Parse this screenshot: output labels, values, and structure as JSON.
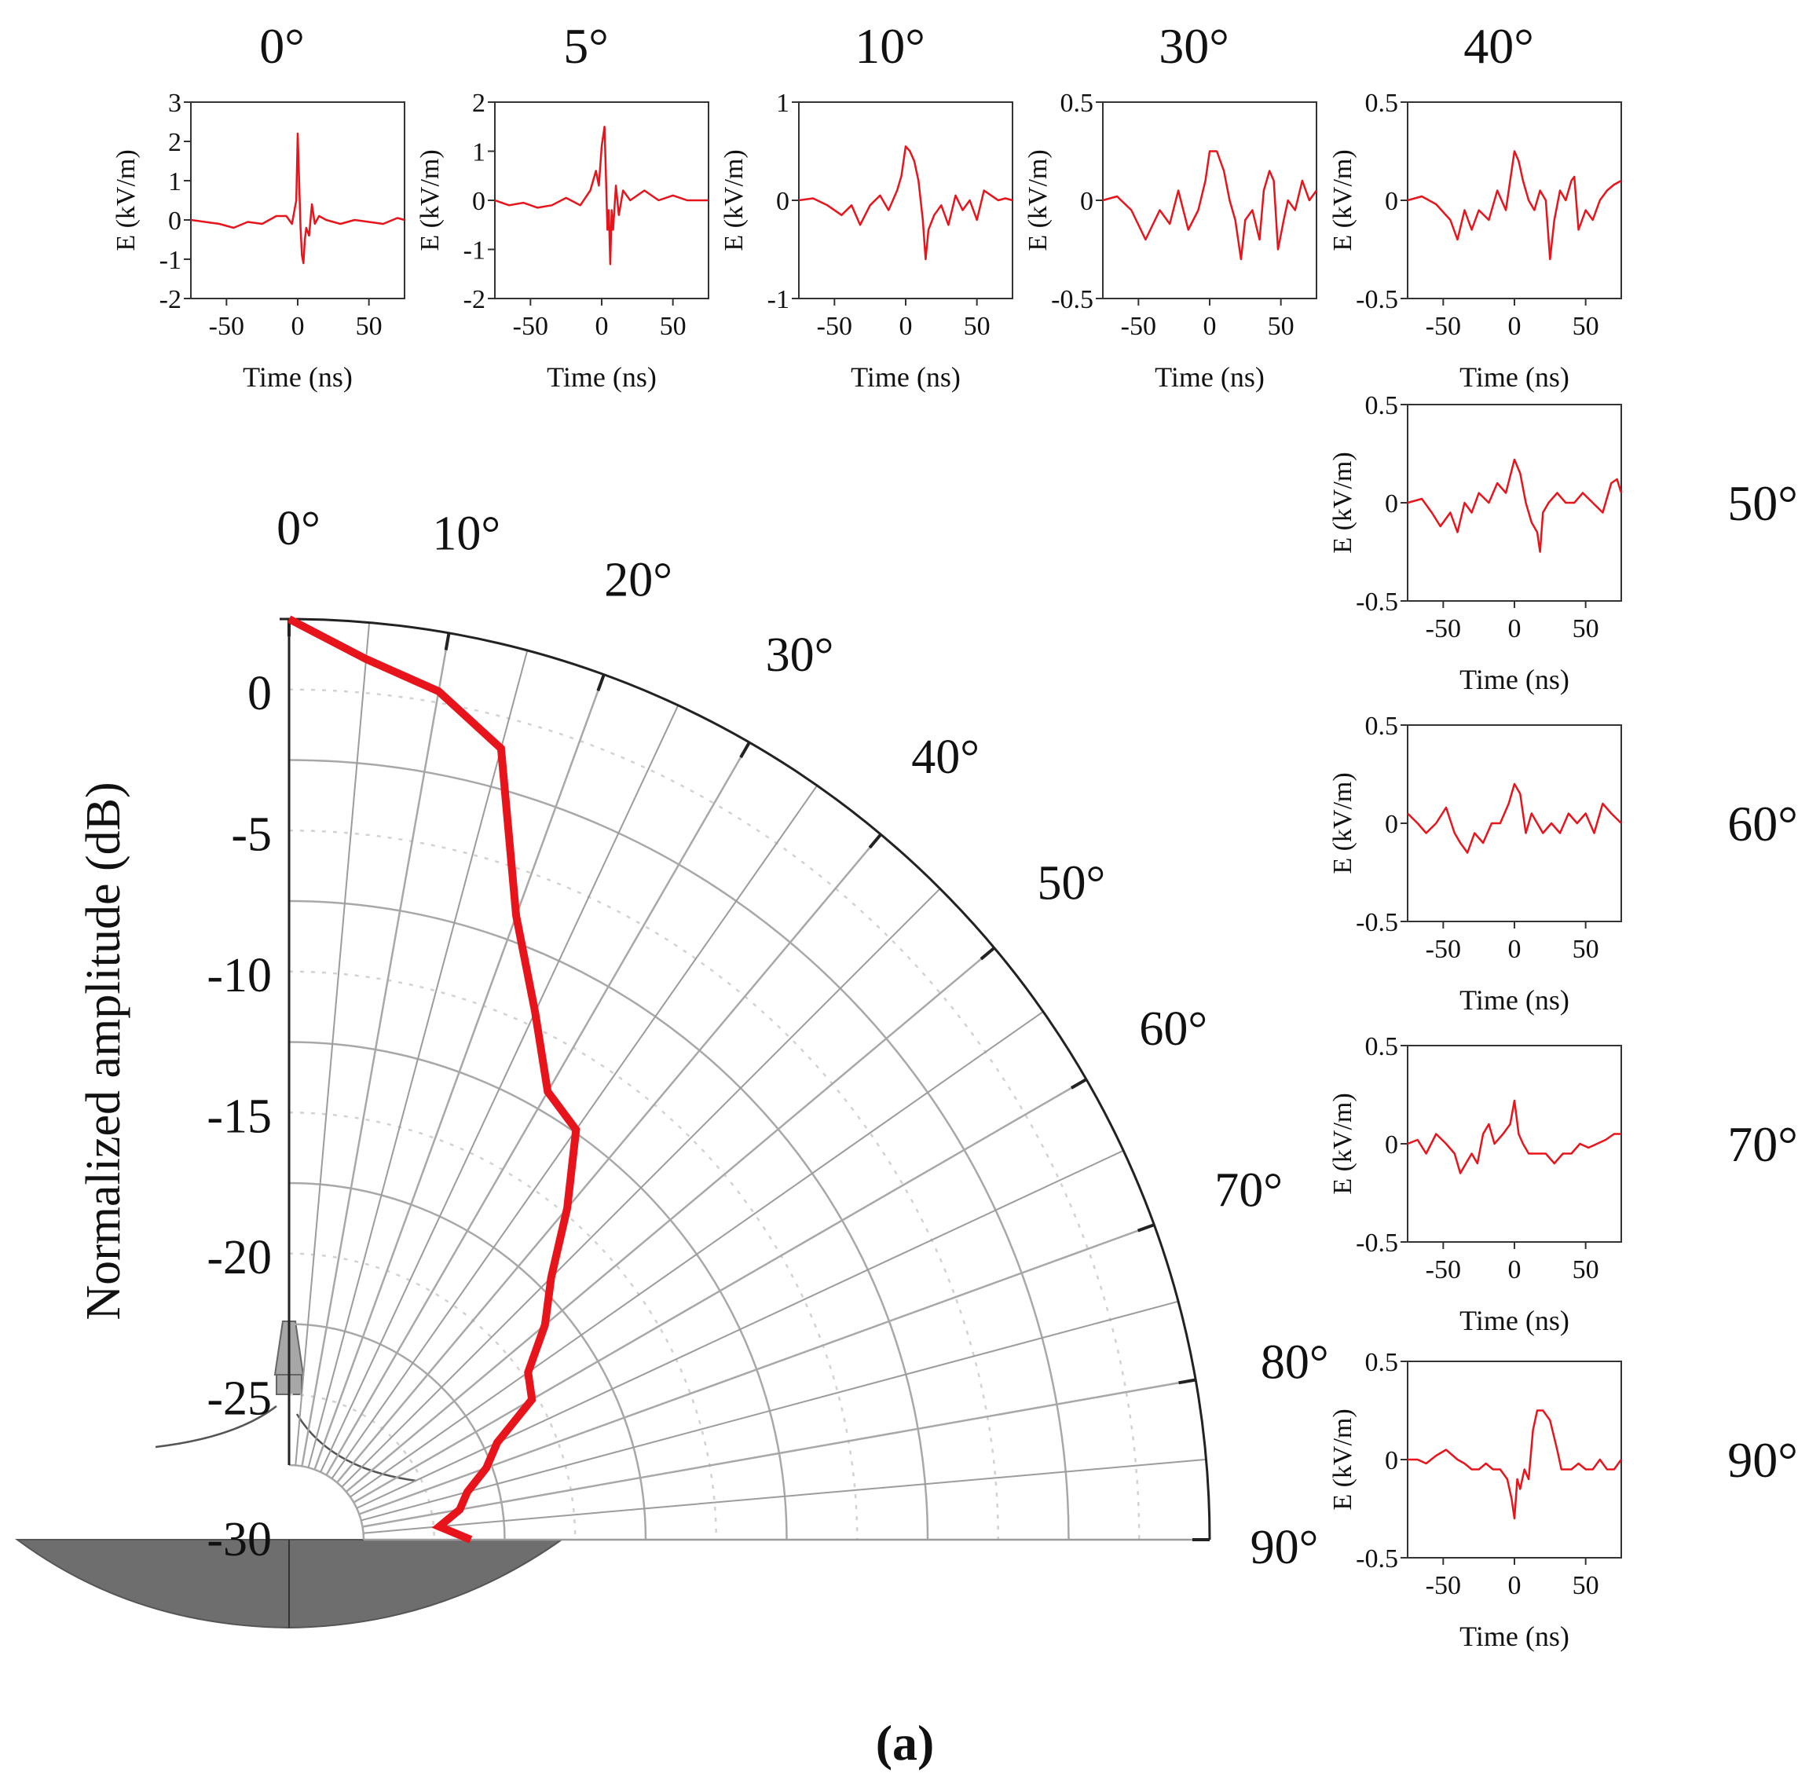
{
  "caption": "(a)",
  "chart_data": [
    {
      "type": "polar-line",
      "ylabel": "Normalized amplitude (dB)",
      "radial_range": [
        -30,
        0
      ],
      "radial_ticks": [
        0,
        -5,
        -10,
        -15,
        -20,
        -25,
        -30
      ],
      "radial_tick_labels": [
        "0",
        "-5",
        "-10",
        "-15",
        "-20",
        "-25",
        "-30"
      ],
      "angle_range": [
        0,
        90
      ],
      "angle_ticks": [
        0,
        10,
        20,
        30,
        40,
        50,
        60,
        70,
        80,
        90
      ],
      "angle_tick_labels": [
        "0°",
        "10°",
        "20°",
        "30°",
        "40°",
        "50°",
        "60°",
        "70°",
        "80°",
        "90°"
      ],
      "grid": true,
      "series": [
        {
          "angles": [
            0,
            5,
            10,
            15,
            20,
            25,
            30,
            35,
            40,
            45,
            50,
            55,
            60,
            65,
            70,
            75,
            80,
            85,
            90
          ],
          "values": [
            0,
            -1.3,
            -2.1,
            -3.6,
            -9.1,
            -12.0,
            -14.3,
            -14.9,
            -17.3,
            -19.5,
            -20.8,
            -22.3,
            -22.7,
            -24.5,
            -25.2,
            -26.1,
            -26.5,
            -27.3,
            -26.2
          ]
        }
      ],
      "colors": {
        "series": "#e8141b",
        "grid": "#a8a8a8",
        "frame": "#222222"
      }
    },
    {
      "type": "line",
      "label": "0°",
      "xlabel": "Time (ns)",
      "ylabel": "E (kV/m)",
      "xlim": [
        -75,
        75
      ],
      "ylim": [
        -2,
        3
      ],
      "xticks": [
        -50,
        0,
        50
      ],
      "xtick_labels": [
        "-50",
        "0",
        "50"
      ],
      "yticks": [
        3,
        2,
        1,
        0,
        -1,
        -2
      ],
      "ytick_labels": [
        "3",
        "2",
        "1",
        "0",
        "-1",
        "-2"
      ],
      "x": [
        -75,
        -65,
        -55,
        -45,
        -35,
        -25,
        -15,
        -8,
        -4,
        -1,
        0,
        1,
        2,
        3,
        4,
        5,
        6,
        8,
        10,
        12,
        15,
        20,
        30,
        40,
        50,
        60,
        70,
        75
      ],
      "y": [
        0.0,
        -0.05,
        -0.1,
        -0.2,
        -0.05,
        -0.1,
        0.1,
        0.1,
        -0.1,
        0.5,
        2.2,
        1.0,
        -0.2,
        -0.9,
        -1.1,
        -0.5,
        -0.2,
        -0.4,
        0.4,
        -0.1,
        0.1,
        0.0,
        -0.1,
        0.0,
        -0.05,
        -0.1,
        0.05,
        0.0
      ]
    },
    {
      "type": "line",
      "label": "5°",
      "xlabel": "Time (ns)",
      "ylabel": "E (kV/m)",
      "xlim": [
        -75,
        75
      ],
      "ylim": [
        -2,
        2
      ],
      "xticks": [
        -50,
        0,
        50
      ],
      "xtick_labels": [
        "-50",
        "0",
        "50"
      ],
      "yticks": [
        2,
        1,
        0,
        -1,
        -2
      ],
      "ytick_labels": [
        "2",
        "1",
        "0",
        "-1",
        "-2"
      ],
      "x": [
        -75,
        -65,
        -55,
        -45,
        -35,
        -25,
        -15,
        -8,
        -4,
        -2,
        0,
        2,
        3,
        4,
        5,
        6,
        7,
        8,
        10,
        12,
        15,
        20,
        30,
        40,
        50,
        60,
        70,
        75
      ],
      "y": [
        0.0,
        -0.1,
        -0.05,
        -0.15,
        -0.1,
        0.05,
        -0.1,
        0.2,
        0.6,
        0.3,
        1.1,
        1.5,
        0.5,
        -0.6,
        -0.2,
        -1.3,
        -0.2,
        -0.6,
        0.3,
        -0.3,
        0.2,
        0.0,
        0.2,
        0.0,
        0.1,
        0.0,
        0.0,
        0.0
      ]
    },
    {
      "type": "line",
      "label": "10°",
      "xlabel": "Time (ns)",
      "ylabel": "E (kV/m)",
      "xlim": [
        -75,
        75
      ],
      "ylim": [
        -1,
        1
      ],
      "xticks": [
        -50,
        0,
        50
      ],
      "xtick_labels": [
        "-50",
        "0",
        "50"
      ],
      "yticks": [
        1,
        0,
        -1
      ],
      "ytick_labels": [
        "1",
        "0",
        "-1"
      ],
      "x": [
        -75,
        -65,
        -55,
        -45,
        -38,
        -32,
        -25,
        -18,
        -12,
        -6,
        -3,
        0,
        3,
        6,
        9,
        12,
        14,
        16,
        20,
        25,
        30,
        35,
        40,
        45,
        50,
        55,
        60,
        65,
        70,
        75
      ],
      "y": [
        0.0,
        0.02,
        -0.05,
        -0.15,
        -0.05,
        -0.25,
        -0.05,
        0.05,
        -0.1,
        0.1,
        0.25,
        0.55,
        0.5,
        0.4,
        0.2,
        -0.2,
        -0.6,
        -0.3,
        -0.15,
        -0.05,
        -0.25,
        0.05,
        -0.1,
        0.0,
        -0.2,
        0.1,
        0.05,
        0.0,
        0.02,
        0.0
      ]
    },
    {
      "type": "line",
      "label": "30°",
      "xlabel": "Time (ns)",
      "ylabel": "E (kV/m)",
      "xlim": [
        -75,
        75
      ],
      "ylim": [
        -0.5,
        0.5
      ],
      "xticks": [
        -50,
        0,
        50
      ],
      "xtick_labels": [
        "-50",
        "0",
        "50"
      ],
      "yticks": [
        0.5,
        0,
        -0.5
      ],
      "ytick_labels": [
        "0.5",
        "0",
        "-0.5"
      ],
      "x": [
        -75,
        -65,
        -55,
        -45,
        -35,
        -28,
        -22,
        -15,
        -8,
        -3,
        0,
        5,
        10,
        14,
        18,
        22,
        25,
        30,
        35,
        38,
        42,
        45,
        48,
        52,
        55,
        60,
        65,
        70,
        75
      ],
      "y": [
        0.0,
        0.02,
        -0.05,
        -0.2,
        -0.05,
        -0.12,
        0.05,
        -0.15,
        -0.05,
        0.1,
        0.25,
        0.25,
        0.15,
        0.0,
        -0.1,
        -0.3,
        -0.1,
        -0.05,
        -0.2,
        0.05,
        0.15,
        0.1,
        -0.25,
        -0.1,
        0.0,
        -0.05,
        0.1,
        0.0,
        0.05
      ]
    },
    {
      "type": "line",
      "label": "40°",
      "xlabel": "Time (ns)",
      "ylabel": "E (kV/m)",
      "xlim": [
        -75,
        75
      ],
      "ylim": [
        -0.5,
        0.5
      ],
      "xticks": [
        -50,
        0,
        50
      ],
      "xtick_labels": [
        "-50",
        "0",
        "50"
      ],
      "yticks": [
        0.5,
        0,
        -0.5
      ],
      "ytick_labels": [
        "0.5",
        "0",
        "-0.5"
      ],
      "x": [
        -75,
        -65,
        -55,
        -45,
        -40,
        -35,
        -30,
        -25,
        -18,
        -12,
        -6,
        0,
        3,
        6,
        10,
        14,
        18,
        22,
        25,
        28,
        32,
        36,
        40,
        42,
        45,
        50,
        55,
        60,
        65,
        70,
        75
      ],
      "y": [
        0.0,
        0.02,
        -0.02,
        -0.1,
        -0.2,
        -0.05,
        -0.15,
        -0.05,
        -0.1,
        0.05,
        -0.05,
        0.25,
        0.2,
        0.1,
        0.0,
        -0.05,
        0.05,
        0.0,
        -0.3,
        -0.1,
        0.05,
        0.0,
        0.1,
        0.12,
        -0.15,
        -0.05,
        -0.1,
        0.0,
        0.05,
        0.08,
        0.1
      ]
    },
    {
      "type": "line",
      "label": "50°",
      "xlabel": "Time (ns)",
      "ylabel": "E (kV/m)",
      "xlim": [
        -75,
        75
      ],
      "ylim": [
        -0.5,
        0.5
      ],
      "xticks": [
        -50,
        0,
        50
      ],
      "xtick_labels": [
        "-50",
        "0",
        "50"
      ],
      "yticks": [
        0.5,
        0,
        -0.5
      ],
      "ytick_labels": [
        "0.5",
        "0",
        "-0.5"
      ],
      "x": [
        -75,
        -65,
        -58,
        -52,
        -45,
        -40,
        -35,
        -30,
        -25,
        -18,
        -12,
        -6,
        0,
        4,
        8,
        12,
        16,
        18,
        20,
        24,
        30,
        36,
        42,
        48,
        55,
        62,
        68,
        72,
        75
      ],
      "y": [
        0.0,
        0.02,
        -0.05,
        -0.12,
        -0.05,
        -0.15,
        0.0,
        -0.05,
        0.05,
        0.0,
        0.1,
        0.05,
        0.22,
        0.15,
        0.0,
        -0.1,
        -0.15,
        -0.25,
        -0.05,
        0.0,
        0.05,
        0.0,
        0.0,
        0.05,
        0.0,
        -0.05,
        0.1,
        0.12,
        0.05
      ]
    },
    {
      "type": "line",
      "label": "60°",
      "xlabel": "Time (ns)",
      "ylabel": "E (kV/m)",
      "xlim": [
        -75,
        75
      ],
      "ylim": [
        -0.5,
        0.5
      ],
      "xticks": [
        -50,
        0,
        50
      ],
      "xtick_labels": [
        "-50",
        "0",
        "50"
      ],
      "yticks": [
        0.5,
        0,
        -0.5
      ],
      "ytick_labels": [
        "0.5",
        "0",
        "-0.5"
      ],
      "x": [
        -75,
        -68,
        -62,
        -55,
        -48,
        -42,
        -38,
        -33,
        -28,
        -22,
        -16,
        -10,
        -4,
        0,
        4,
        8,
        12,
        16,
        20,
        26,
        32,
        38,
        44,
        50,
        56,
        62,
        68,
        75
      ],
      "y": [
        0.05,
        0.0,
        -0.05,
        0.0,
        0.08,
        -0.05,
        -0.1,
        -0.15,
        -0.05,
        -0.1,
        0.0,
        0.0,
        0.1,
        0.2,
        0.15,
        -0.05,
        0.05,
        0.0,
        -0.05,
        0.0,
        -0.05,
        0.05,
        0.0,
        0.05,
        -0.05,
        0.1,
        0.05,
        0.0
      ]
    },
    {
      "type": "line",
      "label": "70°",
      "xlabel": "Time (ns)",
      "ylabel": "E (kV/m)",
      "xlim": [
        -75,
        75
      ],
      "ylim": [
        -0.5,
        0.5
      ],
      "xticks": [
        -50,
        0,
        50
      ],
      "xtick_labels": [
        "-50",
        "0",
        "50"
      ],
      "yticks": [
        0.5,
        0,
        -0.5
      ],
      "ytick_labels": [
        "0.5",
        "0",
        "-0.5"
      ],
      "x": [
        -75,
        -68,
        -62,
        -55,
        -48,
        -42,
        -38,
        -34,
        -30,
        -26,
        -22,
        -18,
        -14,
        -8,
        -3,
        0,
        3,
        6,
        10,
        16,
        22,
        28,
        34,
        40,
        46,
        52,
        58,
        64,
        70,
        75
      ],
      "y": [
        0.0,
        0.02,
        -0.05,
        0.05,
        0.0,
        -0.05,
        -0.15,
        -0.1,
        -0.05,
        -0.1,
        0.05,
        0.1,
        0.0,
        0.05,
        0.1,
        0.22,
        0.05,
        0.0,
        -0.05,
        -0.05,
        -0.05,
        -0.1,
        -0.05,
        -0.05,
        0.0,
        -0.02,
        0.0,
        0.02,
        0.05,
        0.05
      ]
    },
    {
      "type": "line",
      "label": "90°",
      "xlabel": "Time (ns)",
      "ylabel": "E (kV/m)",
      "xlim": [
        -75,
        75
      ],
      "ylim": [
        -0.5,
        0.5
      ],
      "xticks": [
        -50,
        0,
        50
      ],
      "xtick_labels": [
        "-50",
        "0",
        "50"
      ],
      "yticks": [
        0.5,
        0,
        -0.5
      ],
      "ytick_labels": [
        "0.5",
        "0",
        "-0.5"
      ],
      "x": [
        -75,
        -68,
        -62,
        -55,
        -48,
        -40,
        -35,
        -30,
        -25,
        -20,
        -15,
        -10,
        -5,
        -2,
        0,
        2,
        4,
        7,
        10,
        13,
        16,
        20,
        25,
        30,
        33,
        36,
        40,
        45,
        50,
        55,
        60,
        65,
        70,
        75
      ],
      "y": [
        0.0,
        0.0,
        -0.02,
        0.02,
        0.05,
        0.0,
        -0.02,
        -0.05,
        -0.05,
        -0.02,
        -0.05,
        -0.05,
        -0.1,
        -0.2,
        -0.3,
        -0.1,
        -0.15,
        -0.05,
        -0.1,
        0.15,
        0.25,
        0.25,
        0.2,
        0.05,
        -0.05,
        -0.05,
        -0.05,
        -0.02,
        -0.05,
        -0.05,
        0.0,
        -0.05,
        -0.05,
        0.0
      ]
    }
  ]
}
